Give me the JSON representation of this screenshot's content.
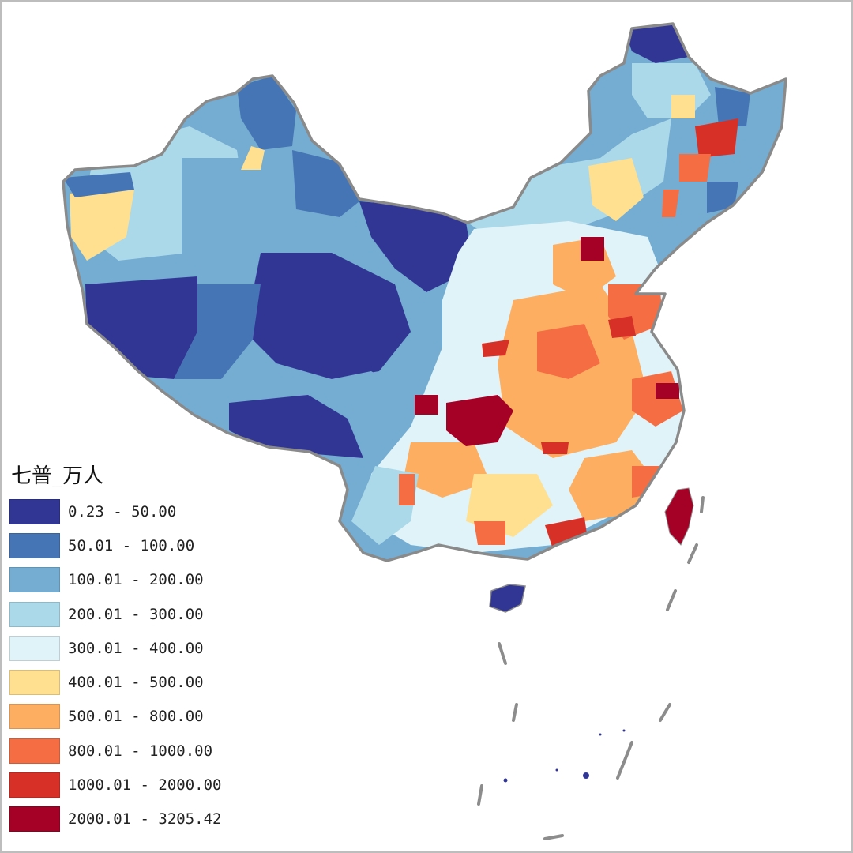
{
  "legend": {
    "title": "七普_万人",
    "classes": [
      {
        "label": "0.23 - 50.00",
        "color": "#313695"
      },
      {
        "label": "50.01 - 100.00",
        "color": "#4575b4"
      },
      {
        "label": "100.01 - 200.00",
        "color": "#74add1"
      },
      {
        "label": "200.01 - 300.00",
        "color": "#abd9e9"
      },
      {
        "label": "300.01 - 400.00",
        "color": "#e0f3f8"
      },
      {
        "label": "400.01 - 500.00",
        "color": "#fee090"
      },
      {
        "label": "500.01 - 800.00",
        "color": "#fdae61"
      },
      {
        "label": "800.01 - 1000.00",
        "color": "#f46d43"
      },
      {
        "label": "1000.01 - 2000.00",
        "color": "#d73027"
      },
      {
        "label": "2000.01 - 3205.42",
        "color": "#a50026"
      }
    ]
  },
  "colors": {
    "border": "#8a8a8a",
    "dash_line": "#8c8c8c",
    "frame": "#bdbdbd"
  }
}
